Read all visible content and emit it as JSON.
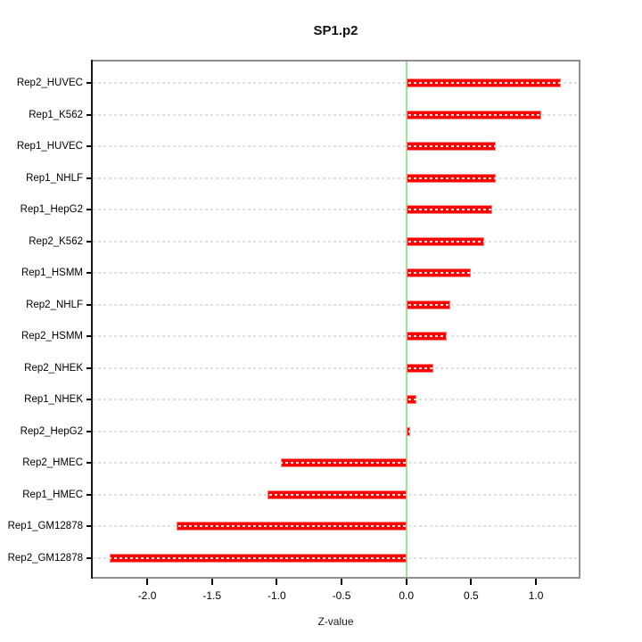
{
  "chart_data": {
    "type": "bar",
    "orientation": "horizontal",
    "title": "SP1.p2",
    "xlabel": "Z-value",
    "ylabel": "",
    "legend": "none",
    "grid": "dashed-horizontal-per-category",
    "categories": [
      "Rep2_HUVEC",
      "Rep1_K562",
      "Rep1_HUVEC",
      "Rep1_NHLF",
      "Rep1_HepG2",
      "Rep2_K562",
      "Rep1_HSMM",
      "Rep2_NHLF",
      "Rep2_HSMM",
      "Rep2_NHEK",
      "Rep1_NHEK",
      "Rep2_HepG2",
      "Rep2_HMEC",
      "Rep1_HMEC",
      "Rep1_GM12878",
      "Rep2_GM12878"
    ],
    "values": [
      1.19,
      1.04,
      0.69,
      0.69,
      0.66,
      0.6,
      0.5,
      0.34,
      0.31,
      0.21,
      0.08,
      0.03,
      -0.97,
      -1.07,
      -1.77,
      -2.29
    ],
    "xtick_values": [
      -2.0,
      -1.5,
      -1.0,
      -0.5,
      0.0,
      0.5,
      1.0
    ],
    "xtick_labels": [
      "-2.0",
      "-1.5",
      "-1.0",
      "-0.5",
      "0.0",
      "0.5",
      "1.0"
    ],
    "xlim": [
      -2.42,
      1.33
    ],
    "zero_line_x": 0,
    "colors": {
      "bar": "#ff0000",
      "bar_edge": "#ff8585",
      "zero_line": "#90ee90",
      "grid_line": "#e0e0e0",
      "box_border": "#8f8f8f",
      "y_axis_line": "#1a1a1a",
      "tick": "#000000",
      "text": "#000000",
      "background": "#ffffff"
    }
  }
}
